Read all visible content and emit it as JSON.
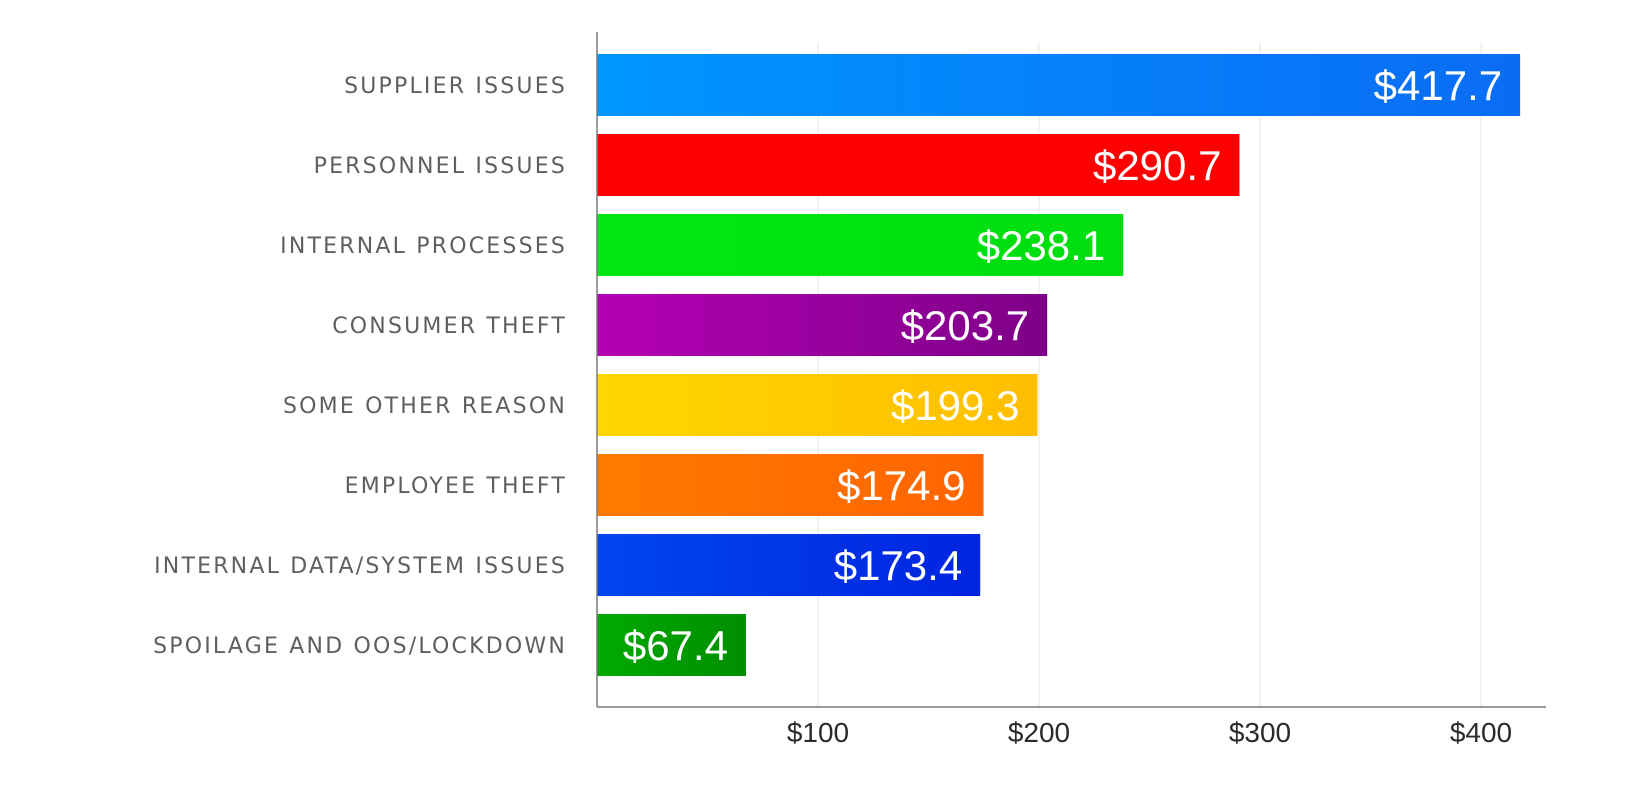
{
  "chart_data": {
    "type": "bar",
    "orientation": "horizontal",
    "categories": [
      "SUPPLIER ISSUES",
      "PERSONNEL ISSUES",
      "INTERNAL PROCESSES",
      "CONSUMER THEFT",
      "SOME OTHER REASON",
      "EMPLOYEE THEFT",
      "INTERNAL DATA/SYSTEM ISSUES",
      "SPOILAGE AND OOS/LOCKDOWN"
    ],
    "values": [
      417.7,
      290.7,
      238.1,
      203.7,
      199.3,
      174.9,
      173.4,
      67.4
    ],
    "value_labels": [
      "$417.7",
      "$290.7",
      "$238.1",
      "$203.7",
      "$199.3",
      "$174.9",
      "$173.4",
      "$67.4"
    ],
    "colors": [
      [
        "#0096ff",
        "#0a6cf5"
      ],
      [
        "#ff0000",
        "#ff0000"
      ],
      [
        "#00e810",
        "#00de10"
      ],
      [
        "#b400b4",
        "#7e0088"
      ],
      [
        "#ffd600",
        "#ffbe00"
      ],
      [
        "#ff7a00",
        "#ff6400"
      ],
      [
        "#0046ee",
        "#0024e0"
      ],
      [
        "#00aa00",
        "#008e00"
      ]
    ],
    "xticks": [
      100,
      200,
      300,
      400
    ],
    "xtick_labels": [
      "$100",
      "$200",
      "$300",
      "$400"
    ],
    "xlim": [
      0,
      430
    ],
    "grid": true,
    "title": "",
    "xlabel": "",
    "ylabel": ""
  }
}
